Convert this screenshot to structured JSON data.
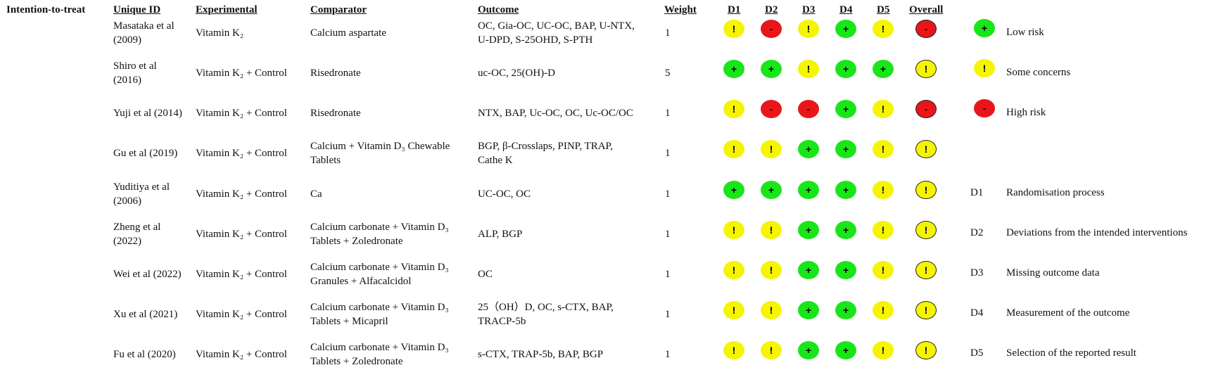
{
  "section_label": "Intention-to-treat",
  "headers": {
    "unique_id": "Unique ID",
    "experimental": "Experimental",
    "comparator": "Comparator",
    "outcome": "Outcome",
    "weight": "Weight",
    "d1": "D1",
    "d2": "D2",
    "d3": "D3",
    "d4": "D4",
    "d5": "D5",
    "overall": "Overall"
  },
  "symbols": {
    "low": "+",
    "some": "!",
    "high": "-"
  },
  "colors": {
    "low": "#19e619",
    "some": "#f5f500",
    "high": "#e8161a"
  },
  "studies": [
    {
      "id": [
        "Masataka et al",
        "(2009)"
      ],
      "experimental": "Vitamin K₂",
      "comparator": [
        "Calcium aspartate"
      ],
      "outcome": [
        "OC, Gia-OC, UC-OC, BAP, U-NTX,",
        "U-DPD, S-25OHD, S-PTH"
      ],
      "weight": "1",
      "judgements": [
        "some",
        "high",
        "some",
        "low",
        "some",
        "high"
      ]
    },
    {
      "id": [
        "Shiro et al",
        "(2016)"
      ],
      "experimental": "Vitamin K₂ +  Control",
      "comparator": [
        "Risedronate"
      ],
      "outcome": [
        "uc-OC, 25(OH)-D"
      ],
      "weight": "5",
      "judgements": [
        "low",
        "low",
        "some",
        "low",
        "low",
        "some"
      ]
    },
    {
      "id": [
        "Yuji et al (2014)"
      ],
      "experimental": "Vitamin K₂ +  Control",
      "comparator": [
        "Risedronate"
      ],
      "outcome": [
        "NTX, BAP, Uc-OC, OC, Uc-OC/OC"
      ],
      "weight": "1",
      "judgements": [
        "some",
        "high",
        "high",
        "low",
        "some",
        "high"
      ]
    },
    {
      "id": [
        "Gu et al (2019)"
      ],
      "experimental": "Vitamin K₂ +  Control",
      "comparator": [
        "Calcium + Vitamin D₃ Chewable",
        "Tablets"
      ],
      "outcome": [
        "BGP, β-Crosslaps, PINP, TRAP,",
        "Cathe K"
      ],
      "weight": "1",
      "judgements": [
        "some",
        "some",
        "low",
        "low",
        "some",
        "some"
      ]
    },
    {
      "id": [
        "Yuditiya et al",
        "(2006)"
      ],
      "experimental": "Vitamin K₂ +  Control",
      "comparator": [
        "Ca"
      ],
      "outcome": [
        "UC-OC, OC"
      ],
      "weight": "1",
      "judgements": [
        "low",
        "low",
        "low",
        "low",
        "some",
        "some"
      ]
    },
    {
      "id": [
        "Zheng et al",
        "(2022)"
      ],
      "experimental": "Vitamin K₂ +  Control",
      "comparator": [
        "Calcium carbonate + Vitamin D₃",
        "Tablets + Zoledronate"
      ],
      "outcome": [
        "ALP, BGP"
      ],
      "weight": "1",
      "judgements": [
        "some",
        "some",
        "low",
        "low",
        "some",
        "some"
      ]
    },
    {
      "id": [
        "Wei et al (2022)"
      ],
      "experimental": "Vitamin K₂ +  Control",
      "comparator": [
        "Calcium carbonate + Vitamin D₃",
        "Granules + Alfacalcidol"
      ],
      "outcome": [
        "OC"
      ],
      "weight": "1",
      "judgements": [
        "some",
        "some",
        "low",
        "low",
        "some",
        "some"
      ]
    },
    {
      "id": [
        "Xu et al (2021)"
      ],
      "experimental": "Vitamin K₂ +  Control",
      "comparator": [
        "Calcium carbonate + Vitamin D₃",
        "Tablets + Micapril"
      ],
      "outcome": [
        "25（OH）D, OC, s-CTX, BAP,",
        "TRACP-5b"
      ],
      "weight": "1",
      "judgements": [
        "some",
        "some",
        "low",
        "low",
        "some",
        "some"
      ]
    },
    {
      "id": [
        "Fu et al (2020)"
      ],
      "experimental": "Vitamin K₂ +  Control",
      "comparator": [
        "Calcium carbonate + Vitamin D₃",
        "Tablets + Zoledronate"
      ],
      "outcome": [
        "s-CTX, TRAP-5b, BAP, BGP"
      ],
      "weight": "1",
      "judgements": [
        "some",
        "some",
        "low",
        "low",
        "some",
        "some"
      ]
    }
  ],
  "legend": {
    "judgements": [
      {
        "key": "low",
        "label": "Low risk"
      },
      {
        "key": "some",
        "label": "Some concerns"
      },
      {
        "key": "high",
        "label": "High risk"
      }
    ],
    "domains": [
      {
        "code": "D1",
        "label": "Randomisation process"
      },
      {
        "code": "D2",
        "label": "Deviations from the intended interventions"
      },
      {
        "code": "D3",
        "label": "Missing outcome data"
      },
      {
        "code": "D4",
        "label": "Measurement of the outcome"
      },
      {
        "code": "D5",
        "label": "Selection of the reported result"
      }
    ]
  }
}
